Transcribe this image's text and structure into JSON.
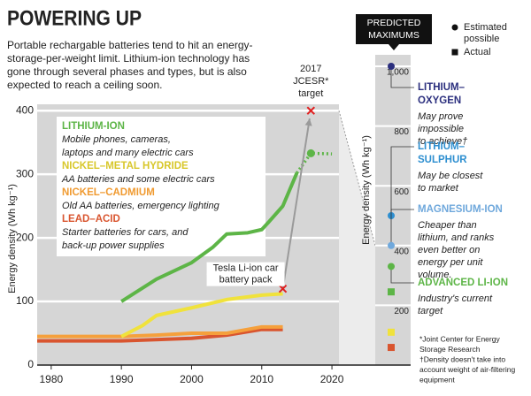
{
  "chart_data": [
    {
      "type": "line",
      "title": "POWERING UP",
      "subtitle": [
        "Portable rechargable batteries tend to hit an energy-",
        "storage-per-weight limit. Lithium-ion technology has",
        "gone through several phases and types, but is also",
        "expected to reach a ceiling soon."
      ],
      "y_label": "Energy density (Wh kg⁻¹)",
      "xlim": [
        1978,
        2021
      ],
      "xticks": [
        1980,
        1990,
        2000,
        2010,
        2020
      ],
      "ylim": [
        0,
        410
      ],
      "yticks": [
        0,
        100,
        200,
        300,
        400
      ],
      "grid": true,
      "series": [
        {
          "name": "LITHIUM-ION",
          "description": [
            "Mobile phones, cameras,",
            "laptops and many electric cars"
          ],
          "color": "#5db547",
          "x": [
            1990,
            1995,
            2000,
            2003,
            2005,
            2008,
            2010,
            2011,
            2013,
            2015
          ],
          "values": [
            100,
            135,
            161,
            185,
            206,
            208,
            213,
            225,
            250,
            302
          ],
          "projection": {
            "x": [
              2015,
              2017,
              2020
            ],
            "values": [
              302,
              333,
              332
            ]
          }
        },
        {
          "name": "NICKEL–METAL HYDRIDE",
          "description": [
            "AA batteries and some electric cars"
          ],
          "color": "#f0e23c",
          "x": [
            1990,
            1993,
            1995,
            2000,
            2005,
            2010,
            2013
          ],
          "values": [
            45,
            62,
            78,
            90,
            103,
            110,
            112
          ]
        },
        {
          "name": "NICKEL–CADMIUM",
          "description": [
            "Old AA batteries, emergency lighting"
          ],
          "color": "#f5a03c",
          "x": [
            1978,
            1990,
            1995,
            2000,
            2005,
            2010,
            2013
          ],
          "values": [
            45,
            45,
            47,
            50,
            50,
            60,
            60
          ]
        },
        {
          "name": "LEAD–ACID",
          "description": [
            "Starter batteries for cars, and",
            "back-up power supplies"
          ],
          "color": "#d9552f",
          "x": [
            1978,
            1990,
            2000,
            2005,
            2010,
            2013
          ],
          "values": [
            38,
            38,
            42,
            47,
            56,
            56
          ]
        }
      ],
      "annotations": [
        {
          "text": [
            "Tesla Li-ion car",
            "battery pack"
          ],
          "x": 2013,
          "y": 120
        },
        {
          "text": [
            "2017",
            "JCESR*",
            "target"
          ],
          "x": 2017,
          "y": 400
        }
      ]
    },
    {
      "type": "dot-column",
      "title": [
        "PREDICTED",
        "MAXIMUMS"
      ],
      "y_label": "Energy density (Wh kg⁻¹)",
      "ylim": [
        0,
        1000
      ],
      "yticks": [
        200,
        400,
        600,
        800,
        {
          "value": 1000,
          "label": "1,000"
        }
      ],
      "legend": [
        {
          "label": [
            "Estimated",
            "possible"
          ],
          "marker": "circle"
        },
        {
          "label": [
            "Actual"
          ],
          "marker": "square"
        }
      ],
      "series": [
        {
          "name": [
            "LITHIUM–",
            "OXYGEN"
          ],
          "description": [
            "May prove",
            "impossible",
            "to achieve†"
          ],
          "color": "#2b2f7e",
          "estimated": 1000,
          "actual": null
        },
        {
          "name": [
            "LITHIUM–",
            "SULPHUR"
          ],
          "description": [
            "May be closest",
            "to market"
          ],
          "color": "#2e8fd0",
          "estimated": 500,
          "actual": null
        },
        {
          "name": [
            "MAGNESIUM-ION"
          ],
          "description": [
            "Cheaper than",
            "lithium, and ranks",
            "even better on",
            "energy per unit",
            "volume."
          ],
          "color": "#6fa8dc",
          "estimated": 400,
          "actual": null
        },
        {
          "name": [
            "ADVANCED LI-ION"
          ],
          "description": [
            "Industry's current",
            "target"
          ],
          "color": "#5db547",
          "estimated": 330,
          "actual": 245
        },
        {
          "name": null,
          "description": null,
          "color": "#f0e23c",
          "estimated": null,
          "actual": 110
        },
        {
          "name": null,
          "description": null,
          "color": "#d9552f",
          "estimated": null,
          "actual": 59
        }
      ],
      "footnotes": [
        "*Joint Center for Energy",
        "Storage Research",
        "†Density doesn't take into",
        "account weight of air-filtering",
        "equipment"
      ]
    }
  ]
}
